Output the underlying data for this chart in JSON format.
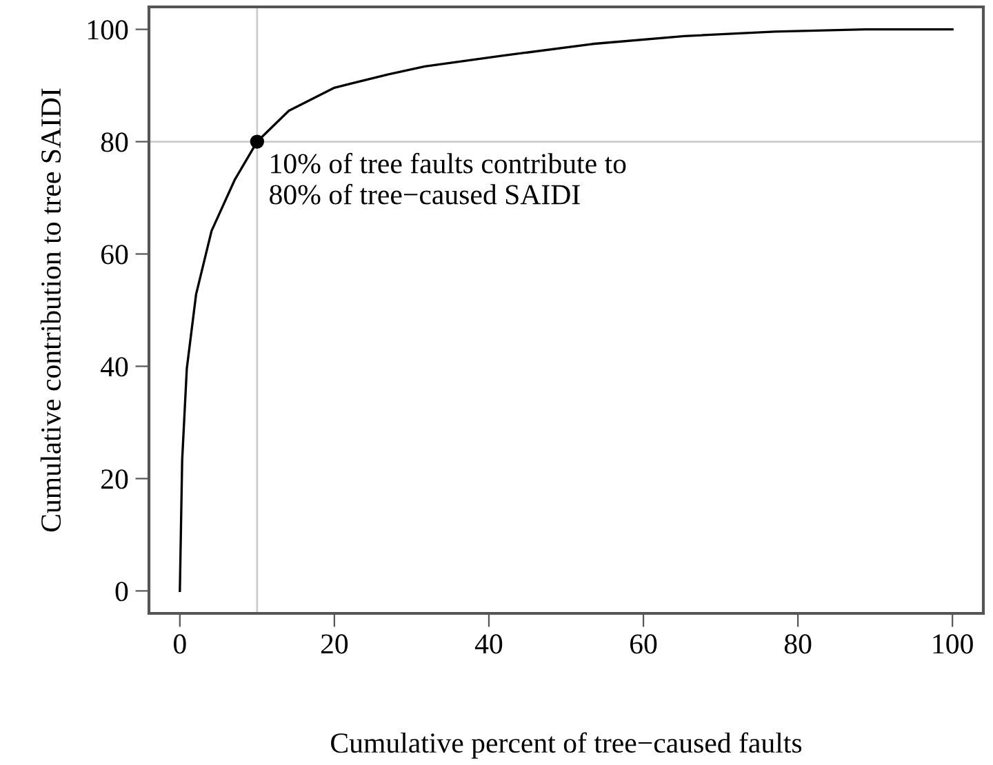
{
  "chart_data": {
    "type": "line",
    "xlabel": "Cumulative percent of tree−caused faults",
    "ylabel": "Cumulative contribution to tree SAIDI",
    "xlim": [
      -4,
      104
    ],
    "ylim": [
      -4,
      104
    ],
    "xticks": [
      0,
      20,
      40,
      60,
      80,
      100
    ],
    "yticks": [
      0,
      20,
      40,
      60,
      80,
      100
    ],
    "grid": false,
    "ref_lines": [
      {
        "axis": "x",
        "value": 10,
        "color": "#cccccc"
      },
      {
        "axis": "y",
        "value": 80,
        "color": "#cccccc"
      }
    ],
    "series": [
      {
        "color": "#000000",
        "x": [
          0,
          0.3,
          0.9,
          2.1,
          4.1,
          7.1,
          10,
          14.1,
          20,
          27,
          31.7,
          41.7,
          53.4,
          65.3,
          77,
          88.7,
          100
        ],
        "values": [
          0,
          23.3,
          39.6,
          52.8,
          64.1,
          73.2,
          80,
          85.5,
          89.6,
          92,
          93.4,
          95.3,
          97.4,
          98.8,
          99.6,
          100,
          100
        ]
      },
      {
        "type": "scatter",
        "color": "#000000",
        "marker": "circle",
        "x": [
          10
        ],
        "values": [
          80
        ]
      }
    ],
    "annotations": [
      {
        "text": "10% of tree faults contribute to\n80% of tree−caused SAIDI",
        "x": 10,
        "y": 80
      }
    ]
  }
}
